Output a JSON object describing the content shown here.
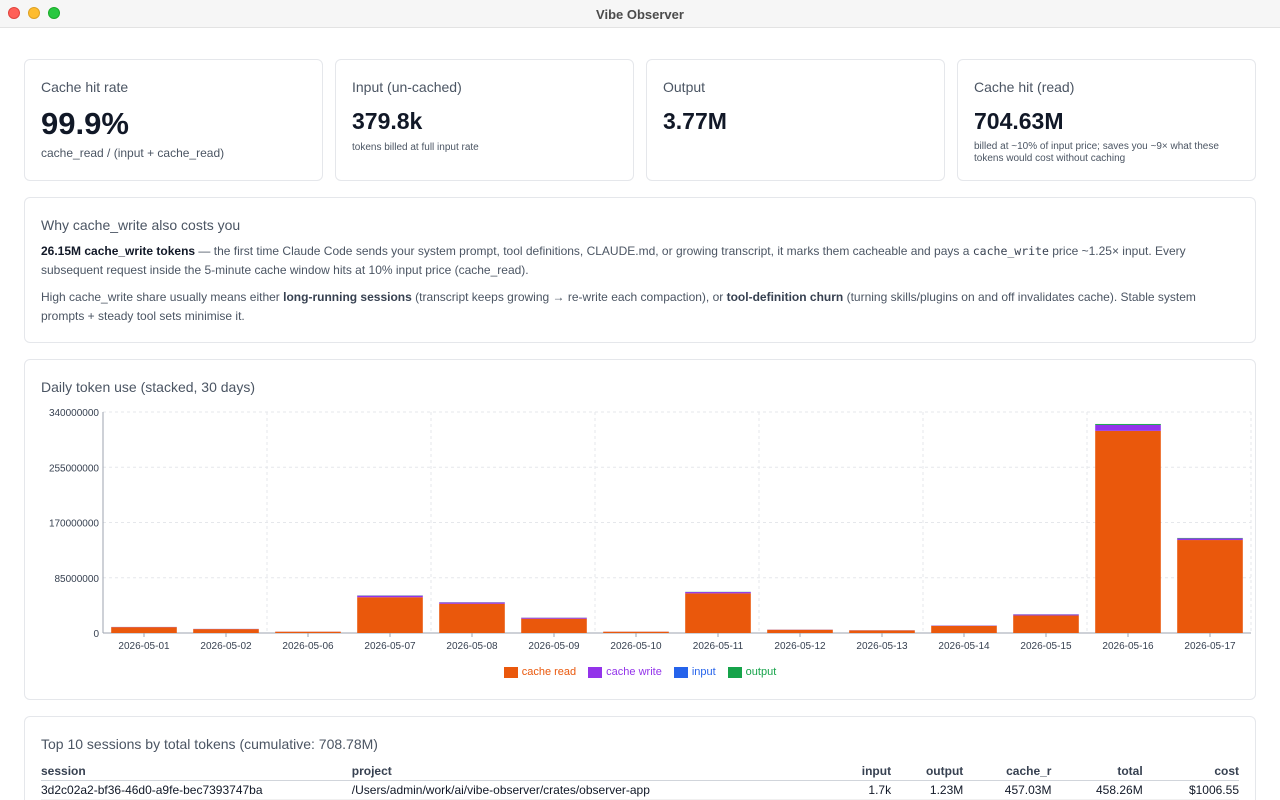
{
  "window": {
    "title": "Vibe Observer"
  },
  "kpis": [
    {
      "label": "Cache hit rate",
      "value": "99.9%",
      "sub": "cache_read / (input + cache_read)"
    },
    {
      "label": "Input (un-cached)",
      "value": "379.8k",
      "sub": "tokens billed at full input rate"
    },
    {
      "label": "Output",
      "value": "3.77M",
      "sub": ""
    },
    {
      "label": "Cache hit (read)",
      "value": "704.63M",
      "sub": "billed at ~10% of input price; saves you ~9× what these tokens would cost without caching"
    }
  ],
  "why": {
    "title": "Why cache_write also costs you",
    "p1_bold": "26.15M cache_write tokens",
    "p1_a": " — the first time Claude Code sends your system prompt, tool definitions, CLAUDE.md, or growing transcript, it marks them cacheable and pays a ",
    "p1_code": "cache_write",
    "p1_b": " price ~1.25× input. Every subsequent request inside the 5-minute cache window hits at 10% input price (cache_read).",
    "p2_a": "High cache_write share usually means either ",
    "p2_strong1": "long-running sessions",
    "p2_b": " (transcript keeps growing → re-write each compaction), or ",
    "p2_strong2": "tool-definition churn",
    "p2_c": " (turning skills/plugins on and off invalidates cache). Stable system prompts + steady tool sets minimise it."
  },
  "chart": {
    "title": "Daily token use (stacked, 30 days)"
  },
  "legend": [
    {
      "label": "cache read",
      "color": "#ea580c"
    },
    {
      "label": "cache write",
      "color": "#9333ea"
    },
    {
      "label": "input",
      "color": "#2563eb"
    },
    {
      "label": "output",
      "color": "#16a34a"
    }
  ],
  "chart_data": {
    "type": "bar",
    "stacked": true,
    "categories": [
      "2026-05-01",
      "2026-05-02",
      "2026-05-06",
      "2026-05-07",
      "2026-05-08",
      "2026-05-09",
      "2026-05-10",
      "2026-05-11",
      "2026-05-12",
      "2026-05-13",
      "2026-05-14",
      "2026-05-15",
      "2026-05-16",
      "2026-05-17"
    ],
    "series": [
      {
        "name": "cache read",
        "color": "#ea580c",
        "values": [
          9000000,
          6000000,
          2000000,
          55000000,
          45000000,
          22000000,
          2000000,
          61000000,
          5000000,
          4000000,
          11000000,
          27000000,
          311000000,
          143000000
        ]
      },
      {
        "name": "cache write",
        "color": "#9333ea",
        "values": [
          300000,
          300000,
          100000,
          2500000,
          2000000,
          1500000,
          100000,
          2000000,
          200000,
          200000,
          500000,
          1500000,
          9000000,
          2500000
        ]
      },
      {
        "name": "input",
        "color": "#2563eb",
        "values": [
          10000,
          10000,
          5000,
          30000,
          30000,
          20000,
          5000,
          30000,
          10000,
          10000,
          10000,
          20000,
          100000,
          50000
        ]
      },
      {
        "name": "output",
        "color": "#16a34a",
        "values": [
          50000,
          40000,
          20000,
          300000,
          250000,
          150000,
          20000,
          300000,
          40000,
          40000,
          80000,
          200000,
          1500000,
          700000
        ]
      }
    ],
    "yticks": [
      "0",
      "85000000",
      "170000000",
      "255000000",
      "340000000"
    ],
    "ylim": [
      0,
      340000000
    ],
    "grid": true,
    "legend": "bottom-center"
  },
  "sessions": {
    "title": "Top 10 sessions by total tokens (cumulative: 708.78M)",
    "columns": [
      "session",
      "project",
      "input",
      "output",
      "cache_r",
      "total",
      "cost"
    ],
    "rows": [
      [
        "3d2c02a2-bf36-46d0-a9fe-bec7393747ba",
        "/Users/admin/work/ai/vibe-observer/crates/observer-app",
        "1.7k",
        "1.23M",
        "457.03M",
        "458.26M",
        "$1006.55"
      ]
    ]
  }
}
